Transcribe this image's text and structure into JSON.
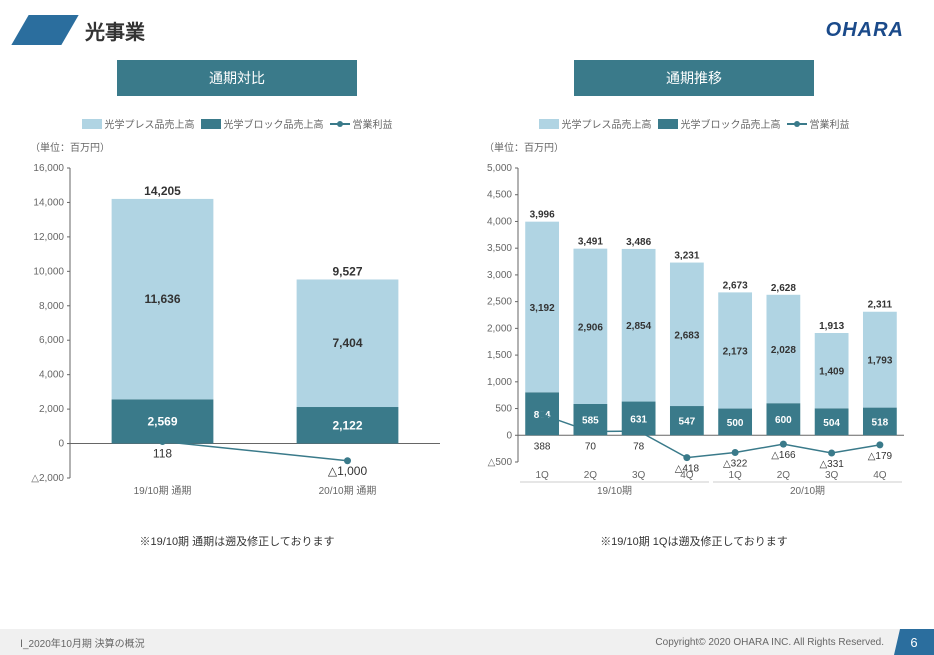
{
  "header": {
    "title": "光事業",
    "logo": "OHARA"
  },
  "legend": {
    "s1": "光学プレス品売上高",
    "s2": "光学ブロック品売上高",
    "s3": "営業利益"
  },
  "unit": "（単位：百万円）",
  "colors": {
    "light": "#b0d4e3",
    "dark": "#3a7a8a",
    "marker": "#3a7a8a",
    "axis": "#666666",
    "grid": "#e0e0e0",
    "text": "#333333"
  },
  "left": {
    "title": "通期対比",
    "yticks": [
      16000,
      14000,
      12000,
      10000,
      8000,
      6000,
      4000,
      2000,
      0,
      -2000
    ],
    "ylim": [
      -2000,
      16000
    ],
    "categories": [
      "19/10期 通期",
      "20/10期 通期"
    ],
    "bars": [
      {
        "total": 14205,
        "upper": 11636,
        "lower": 2569,
        "profit": 118
      },
      {
        "total": 9527,
        "upper": 7404,
        "lower": 2122,
        "profit": -1000
      }
    ],
    "note": "※19/10期 通期は遡及修正しております"
  },
  "right": {
    "title": "通期推移",
    "yticks": [
      5000,
      4500,
      4000,
      3500,
      3000,
      2500,
      2000,
      1500,
      1000,
      500,
      0,
      -500
    ],
    "ylim": [
      -500,
      5000
    ],
    "groups": [
      "19/10期",
      "20/10期"
    ],
    "categories": [
      "1Q",
      "2Q",
      "3Q",
      "4Q",
      "1Q",
      "2Q",
      "3Q",
      "4Q"
    ],
    "bars": [
      {
        "total": 3996,
        "upper": 3192,
        "lower": 804,
        "profit": 388
      },
      {
        "total": 3491,
        "upper": 2906,
        "lower": 585,
        "profit": 70
      },
      {
        "total": 3486,
        "upper": 2854,
        "lower": 631,
        "profit": 78
      },
      {
        "total": 3231,
        "upper": 2683,
        "lower": 547,
        "profit": -418
      },
      {
        "total": 2673,
        "upper": 2173,
        "lower": 500,
        "profit": -322
      },
      {
        "total": 2628,
        "upper": 2028,
        "lower": 600,
        "profit": -166
      },
      {
        "total": 1913,
        "upper": 1409,
        "lower": 504,
        "profit": -331
      },
      {
        "total": 2311,
        "upper": 1793,
        "lower": 518,
        "profit": -179
      }
    ],
    "note": "※19/10期 1Qは遡及修正しております"
  },
  "footer": {
    "left": "Ⅰ_2020年10月期 決算の概況",
    "copyright": "Copyright© 2020 OHARA INC. All Rights Reserved.",
    "page": "6"
  }
}
